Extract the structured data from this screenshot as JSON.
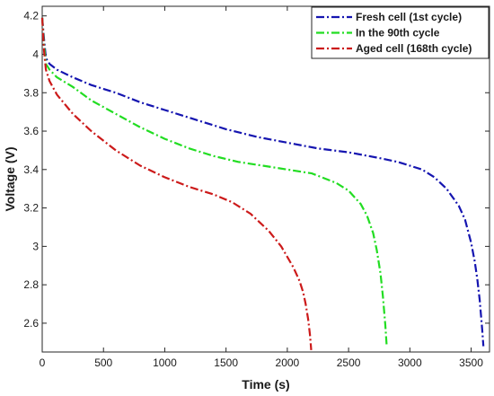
{
  "chart_data": {
    "type": "line",
    "xlabel": "Time (s)",
    "ylabel": "Voltage (V)",
    "xlim": [
      0,
      3650
    ],
    "ylim": [
      2.45,
      4.25
    ],
    "xticks": [
      0,
      500,
      1000,
      1500,
      2000,
      2500,
      3000,
      3500
    ],
    "yticks": [
      2.6,
      2.8,
      3.0,
      3.2,
      3.4,
      3.6,
      3.8,
      4.0,
      4.2
    ],
    "xtick_labels": [
      "0",
      "500",
      "1000",
      "1500",
      "2000",
      "2500",
      "3000",
      "3500"
    ],
    "ytick_labels": [
      "2.6",
      "2.8",
      "3",
      "3.2",
      "3.4",
      "3.6",
      "3.8",
      "4",
      "4.2"
    ],
    "grid": false,
    "legend_position": "top-right",
    "series": [
      {
        "name": "Fresh cell (1st cycle)",
        "color": "#1515b0",
        "x": [
          0,
          15,
          30,
          60,
          120,
          250,
          400,
          600,
          800,
          1000,
          1250,
          1500,
          1750,
          2000,
          2250,
          2500,
          2750,
          2900,
          3000,
          3100,
          3200,
          3300,
          3400,
          3450,
          3500,
          3530,
          3550,
          3570,
          3590,
          3600
        ],
        "y": [
          4.19,
          4.08,
          3.98,
          3.95,
          3.92,
          3.88,
          3.84,
          3.8,
          3.75,
          3.71,
          3.66,
          3.61,
          3.57,
          3.54,
          3.51,
          3.49,
          3.46,
          3.44,
          3.42,
          3.4,
          3.36,
          3.3,
          3.21,
          3.14,
          3.02,
          2.92,
          2.83,
          2.72,
          2.57,
          2.48
        ]
      },
      {
        "name": "In the 90th cycle",
        "color": "#22dd22",
        "x": [
          0,
          15,
          30,
          60,
          120,
          250,
          400,
          600,
          800,
          1000,
          1200,
          1400,
          1600,
          1800,
          2000,
          2200,
          2400,
          2500,
          2600,
          2650,
          2700,
          2730,
          2760,
          2780,
          2800,
          2810
        ],
        "y": [
          4.19,
          4.05,
          3.95,
          3.92,
          3.88,
          3.83,
          3.76,
          3.69,
          3.62,
          3.56,
          3.51,
          3.47,
          3.44,
          3.42,
          3.4,
          3.38,
          3.33,
          3.29,
          3.22,
          3.16,
          3.07,
          2.98,
          2.86,
          2.74,
          2.59,
          2.49
        ]
      },
      {
        "name": "Aged cell (168th cycle)",
        "color": "#cc1a1a",
        "x": [
          0,
          15,
          30,
          60,
          120,
          250,
          400,
          600,
          800,
          1000,
          1200,
          1400,
          1550,
          1700,
          1850,
          1950,
          2050,
          2100,
          2130,
          2150,
          2170,
          2185,
          2195
        ],
        "y": [
          4.19,
          4.02,
          3.92,
          3.86,
          3.79,
          3.69,
          3.6,
          3.5,
          3.42,
          3.36,
          3.31,
          3.27,
          3.23,
          3.17,
          3.08,
          3.0,
          2.89,
          2.82,
          2.76,
          2.7,
          2.62,
          2.54,
          2.46
        ]
      }
    ]
  }
}
